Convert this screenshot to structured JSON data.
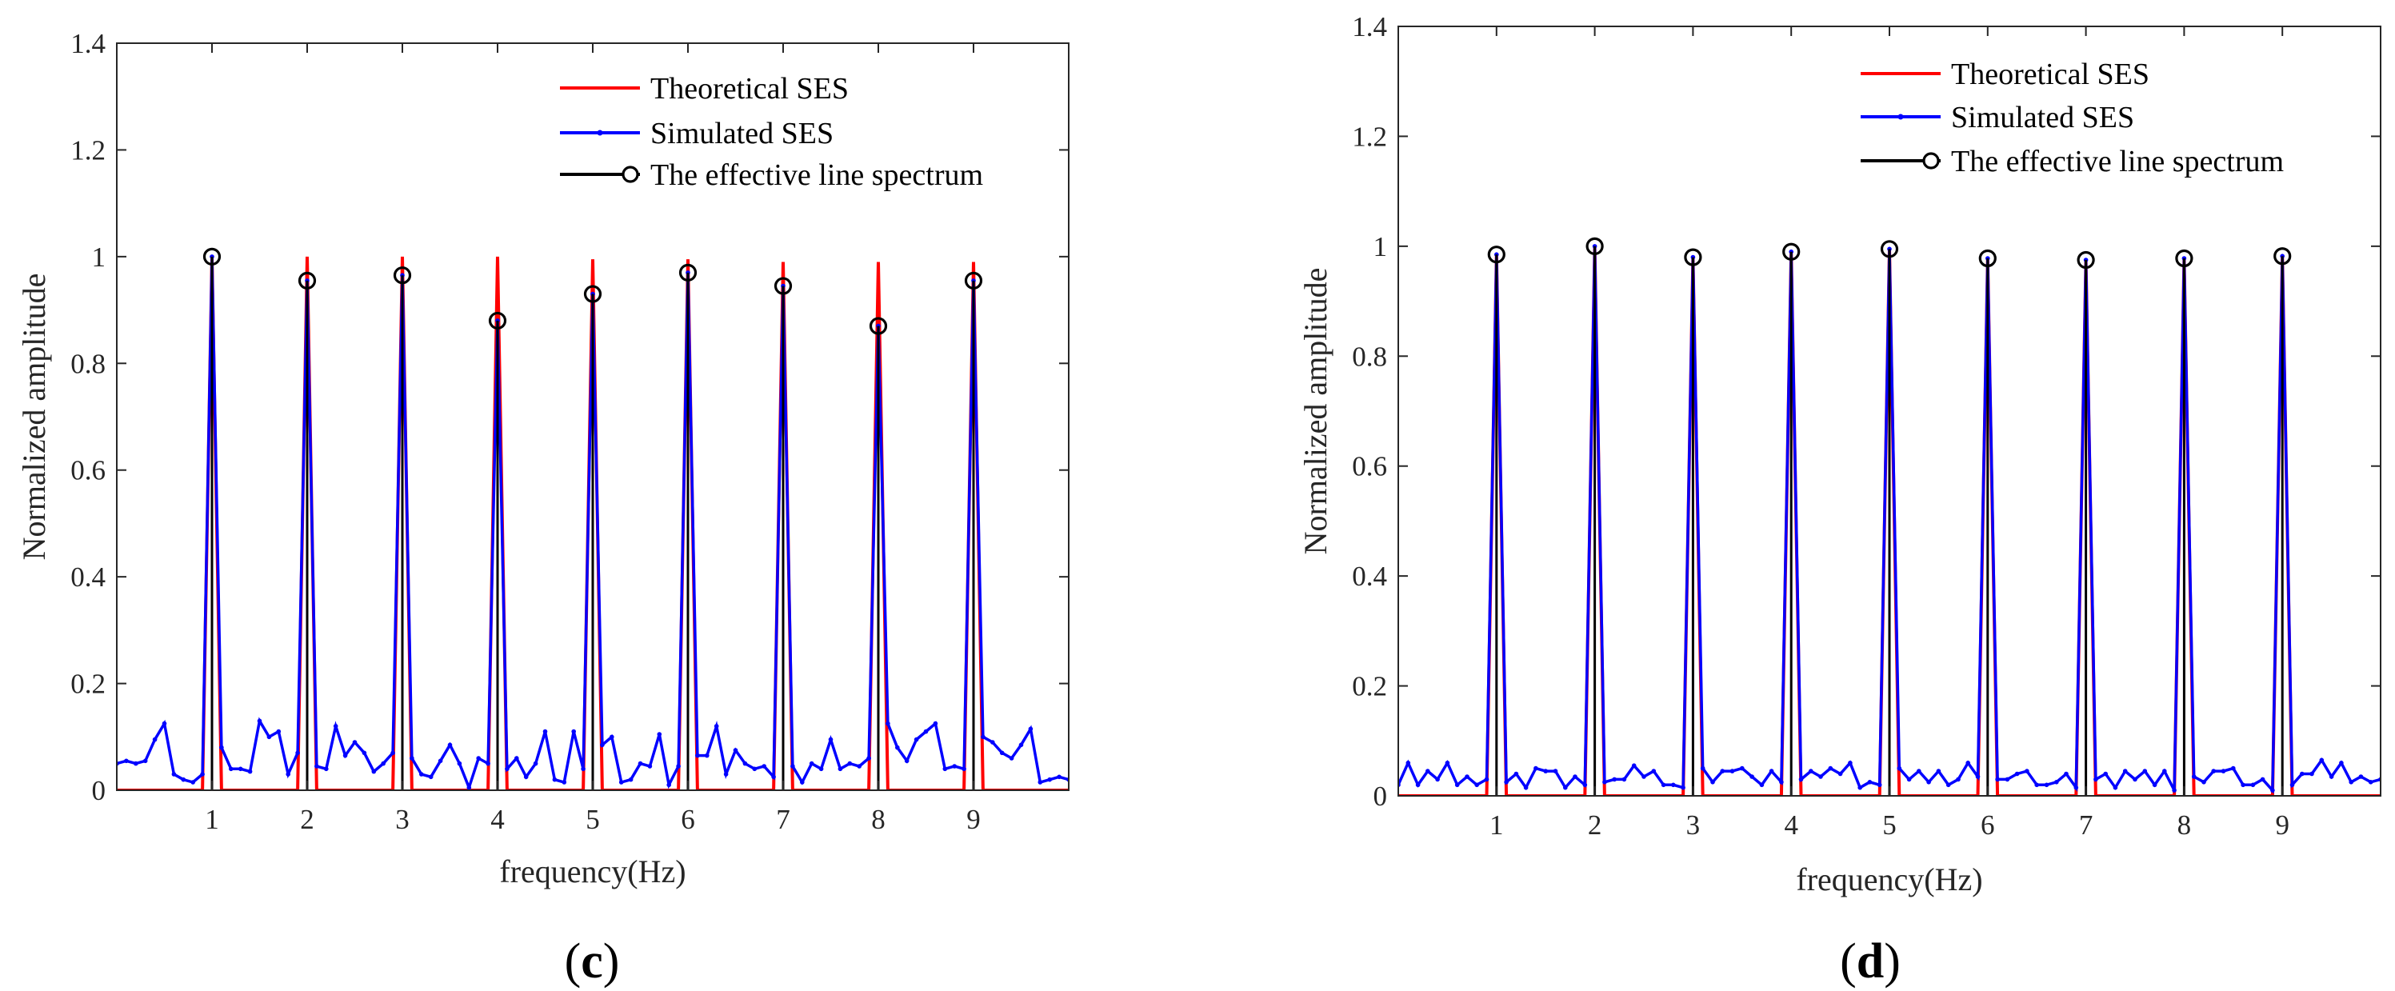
{
  "chart_data": [
    {
      "type": "line",
      "panel_label": "c",
      "xlabel": "frequency(Hz)",
      "ylabel": "Normalized amplitude",
      "xlim": [
        0,
        10
      ],
      "ylim": [
        0,
        1.4
      ],
      "xticks": [
        1,
        2,
        3,
        4,
        5,
        6,
        7,
        8,
        9
      ],
      "yticks": [
        0,
        0.2,
        0.4,
        0.6,
        0.8,
        1,
        1.2,
        1.4
      ],
      "ytick_labels": [
        "0",
        "0.2",
        "0.4",
        "0.6",
        "0.8",
        "1",
        "1.2",
        "1.4"
      ],
      "grid": false,
      "legend": {
        "placement": "top-right",
        "entries": [
          "Theoretical SES",
          "Simulated SES",
          "The effective line spectrum"
        ]
      },
      "series": [
        {
          "name": "Theoretical SES",
          "color": "#ff0000",
          "style": "line",
          "x": [
            1,
            2,
            3,
            4,
            5,
            6,
            7,
            8,
            9
          ],
          "peaks": [
            1.0,
            1.0,
            1.0,
            1.0,
            0.995,
            0.995,
            0.99,
            0.99,
            0.99
          ],
          "base": 0,
          "peak_halfwidth": 0.1
        },
        {
          "name": "Simulated SES",
          "color": "#0000ff",
          "style": "line-dot",
          "x": [
            0,
            0.1,
            0.2,
            0.3,
            0.4,
            0.5,
            0.6,
            0.7,
            0.8,
            0.9,
            1,
            1.1,
            1.2,
            1.3,
            1.4,
            1.5,
            1.6,
            1.7,
            1.8,
            1.9,
            2,
            2.1,
            2.2,
            2.3,
            2.4,
            2.5,
            2.6,
            2.7,
            2.8,
            2.9,
            3,
            3.1,
            3.2,
            3.3,
            3.4,
            3.5,
            3.6,
            3.7,
            3.8,
            3.9,
            4,
            4.1,
            4.2,
            4.3,
            4.4,
            4.5,
            4.6,
            4.7,
            4.8,
            4.9,
            5,
            5.1,
            5.2,
            5.3,
            5.4,
            5.5,
            5.6,
            5.7,
            5.8,
            5.9,
            6,
            6.1,
            6.2,
            6.3,
            6.4,
            6.5,
            6.6,
            6.7,
            6.8,
            6.9,
            7,
            7.1,
            7.2,
            7.3,
            7.4,
            7.5,
            7.6,
            7.7,
            7.8,
            7.9,
            8,
            8.1,
            8.2,
            8.3,
            8.4,
            8.5,
            8.6,
            8.7,
            8.8,
            8.9,
            9,
            9.1,
            9.2,
            9.3,
            9.4,
            9.5,
            9.6,
            9.7,
            9.8,
            9.9,
            10
          ],
          "y": [
            0.05,
            0.055,
            0.05,
            0.055,
            0.095,
            0.125,
            0.03,
            0.02,
            0.015,
            0.03,
            1.0,
            0.08,
            0.04,
            0.04,
            0.035,
            0.13,
            0.1,
            0.11,
            0.03,
            0.07,
            0.955,
            0.045,
            0.04,
            0.12,
            0.065,
            0.09,
            0.07,
            0.035,
            0.05,
            0.07,
            0.965,
            0.06,
            0.03,
            0.025,
            0.055,
            0.085,
            0.05,
            0.005,
            0.06,
            0.05,
            0.88,
            0.04,
            0.06,
            0.025,
            0.05,
            0.11,
            0.02,
            0.015,
            0.11,
            0.04,
            0.93,
            0.085,
            0.1,
            0.015,
            0.02,
            0.05,
            0.045,
            0.105,
            0.01,
            0.045,
            0.97,
            0.065,
            0.065,
            0.12,
            0.03,
            0.075,
            0.05,
            0.04,
            0.045,
            0.025,
            0.945,
            0.045,
            0.015,
            0.05,
            0.04,
            0.095,
            0.04,
            0.05,
            0.045,
            0.06,
            0.87,
            0.125,
            0.08,
            0.055,
            0.095,
            0.11,
            0.125,
            0.04,
            0.045,
            0.04,
            0.955,
            0.1,
            0.09,
            0.07,
            0.06,
            0.085,
            0.115,
            0.015,
            0.02,
            0.025,
            0.02
          ]
        },
        {
          "name": "The effective line spectrum",
          "color": "#000000",
          "style": "stem",
          "x": [
            1,
            2,
            3,
            4,
            5,
            6,
            7,
            8,
            9
          ],
          "y": [
            1.0,
            0.955,
            0.965,
            0.88,
            0.93,
            0.97,
            0.945,
            0.87,
            0.955
          ]
        }
      ]
    },
    {
      "type": "line",
      "panel_label": "d",
      "xlabel": "frequency(Hz)",
      "ylabel": "Normalized amplitude",
      "xlim": [
        0,
        10
      ],
      "ylim": [
        0,
        1.4
      ],
      "xticks": [
        1,
        2,
        3,
        4,
        5,
        6,
        7,
        8,
        9
      ],
      "yticks": [
        0,
        0.2,
        0.4,
        0.6,
        0.8,
        1,
        1.2,
        1.4
      ],
      "ytick_labels": [
        "0",
        "0.2",
        "0.4",
        "0.6",
        "0.8",
        "1",
        "1.2",
        "1.4"
      ],
      "grid": false,
      "legend": {
        "placement": "top-right",
        "entries": [
          "Theoretical SES",
          "Simulated SES",
          "The effective line spectrum"
        ]
      },
      "series": [
        {
          "name": "Theoretical SES",
          "color": "#ff0000",
          "style": "line",
          "x": [
            1,
            2,
            3,
            4,
            5,
            6,
            7,
            8,
            9
          ],
          "peaks": [
            0.985,
            1.0,
            0.98,
            0.99,
            0.995,
            0.978,
            0.975,
            0.978,
            0.982
          ],
          "base": 0,
          "peak_halfwidth": 0.1
        },
        {
          "name": "Simulated SES",
          "color": "#0000ff",
          "style": "line-dot",
          "x": [
            0,
            0.1,
            0.2,
            0.3,
            0.4,
            0.5,
            0.6,
            0.7,
            0.8,
            0.9,
            1,
            1.1,
            1.2,
            1.3,
            1.4,
            1.5,
            1.6,
            1.7,
            1.8,
            1.9,
            2,
            2.1,
            2.2,
            2.3,
            2.4,
            2.5,
            2.6,
            2.7,
            2.8,
            2.9,
            3,
            3.1,
            3.2,
            3.3,
            3.4,
            3.5,
            3.6,
            3.7,
            3.8,
            3.9,
            4,
            4.1,
            4.2,
            4.3,
            4.4,
            4.5,
            4.6,
            4.7,
            4.8,
            4.9,
            5,
            5.1,
            5.2,
            5.3,
            5.4,
            5.5,
            5.6,
            5.7,
            5.8,
            5.9,
            6,
            6.1,
            6.2,
            6.3,
            6.4,
            6.5,
            6.6,
            6.7,
            6.8,
            6.9,
            7,
            7.1,
            7.2,
            7.3,
            7.4,
            7.5,
            7.6,
            7.7,
            7.8,
            7.9,
            8,
            8.1,
            8.2,
            8.3,
            8.4,
            8.5,
            8.6,
            8.7,
            8.8,
            8.9,
            9,
            9.1,
            9.2,
            9.3,
            9.4,
            9.5,
            9.6,
            9.7,
            9.8,
            9.9,
            10
          ],
          "y": [
            0.02,
            0.06,
            0.02,
            0.045,
            0.03,
            0.06,
            0.02,
            0.035,
            0.02,
            0.03,
            0.985,
            0.025,
            0.04,
            0.015,
            0.05,
            0.045,
            0.045,
            0.015,
            0.035,
            0.02,
            1.0,
            0.025,
            0.03,
            0.03,
            0.055,
            0.035,
            0.045,
            0.02,
            0.02,
            0.015,
            0.98,
            0.05,
            0.025,
            0.045,
            0.045,
            0.05,
            0.035,
            0.02,
            0.045,
            0.025,
            0.99,
            0.03,
            0.045,
            0.035,
            0.05,
            0.04,
            0.06,
            0.015,
            0.025,
            0.02,
            0.995,
            0.05,
            0.03,
            0.045,
            0.025,
            0.045,
            0.02,
            0.03,
            0.06,
            0.035,
            0.978,
            0.03,
            0.03,
            0.04,
            0.045,
            0.02,
            0.02,
            0.025,
            0.04,
            0.015,
            0.975,
            0.03,
            0.04,
            0.015,
            0.045,
            0.03,
            0.045,
            0.02,
            0.045,
            0.01,
            0.978,
            0.035,
            0.025,
            0.045,
            0.045,
            0.05,
            0.02,
            0.02,
            0.03,
            0.01,
            0.982,
            0.02,
            0.04,
            0.04,
            0.065,
            0.035,
            0.06,
            0.025,
            0.035,
            0.025,
            0.03
          ]
        },
        {
          "name": "The effective line spectrum",
          "color": "#000000",
          "style": "stem",
          "x": [
            1,
            2,
            3,
            4,
            5,
            6,
            7,
            8,
            9
          ],
          "y": [
            0.985,
            1.0,
            0.98,
            0.99,
            0.995,
            0.978,
            0.975,
            0.978,
            0.982
          ]
        }
      ]
    }
  ]
}
